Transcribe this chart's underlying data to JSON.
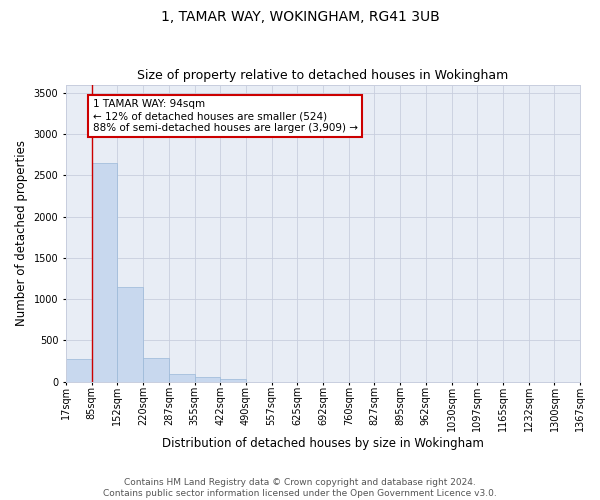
{
  "title": "1, TAMAR WAY, WOKINGHAM, RG41 3UB",
  "subtitle": "Size of property relative to detached houses in Wokingham",
  "xlabel": "Distribution of detached houses by size in Wokingham",
  "ylabel": "Number of detached properties",
  "bar_color": "#c8d8ee",
  "bar_edge_color": "#9ab8d8",
  "grid_color": "#c8cede",
  "bg_color": "#e8edf5",
  "annotation_box_text": "1 TAMAR WAY: 94sqm\n← 12% of detached houses are smaller (524)\n88% of semi-detached houses are larger (3,909) →",
  "annotation_box_color": "#cc0000",
  "vline_x_index": 1,
  "vline_color": "#cc0000",
  "bin_edges": [
    17,
    85,
    152,
    220,
    287,
    355,
    422,
    490,
    557,
    625,
    692,
    760,
    827,
    895,
    962,
    1030,
    1097,
    1165,
    1232,
    1300,
    1367
  ],
  "bin_values": [
    270,
    2650,
    1150,
    285,
    90,
    55,
    35,
    0,
    0,
    0,
    0,
    0,
    0,
    0,
    0,
    0,
    0,
    0,
    0,
    0
  ],
  "tick_labels": [
    "17sqm",
    "85sqm",
    "152sqm",
    "220sqm",
    "287sqm",
    "355sqm",
    "422sqm",
    "490sqm",
    "557sqm",
    "625sqm",
    "692sqm",
    "760sqm",
    "827sqm",
    "895sqm",
    "962sqm",
    "1030sqm",
    "1097sqm",
    "1165sqm",
    "1232sqm",
    "1300sqm",
    "1367sqm"
  ],
  "ylim": [
    0,
    3600
  ],
  "yticks": [
    0,
    500,
    1000,
    1500,
    2000,
    2500,
    3000,
    3500
  ],
  "footer_text": "Contains HM Land Registry data © Crown copyright and database right 2024.\nContains public sector information licensed under the Open Government Licence v3.0.",
  "title_fontsize": 10,
  "subtitle_fontsize": 9,
  "axis_label_fontsize": 8.5,
  "tick_fontsize": 7,
  "footer_fontsize": 6.5,
  "annot_fontsize": 7.5
}
